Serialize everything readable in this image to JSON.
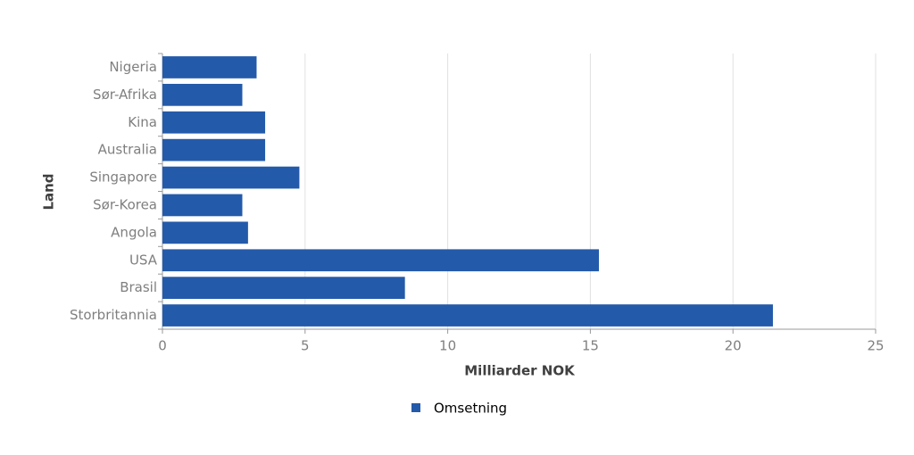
{
  "chart_data": {
    "type": "bar",
    "orientation": "horizontal",
    "xlabel": "Milliarder NOK",
    "ylabel": "Land",
    "categories": [
      "Nigeria",
      "Sør-Afrika",
      "Kina",
      "Australia",
      "Singapore",
      "Sør-Korea",
      "Angola",
      "USA",
      "Brasil",
      "Storbritannia"
    ],
    "series": [
      {
        "name": "Omsetning",
        "color": "#245aaa",
        "values": [
          3.3,
          2.8,
          3.6,
          3.6,
          4.8,
          2.8,
          3.0,
          15.3,
          8.5,
          21.4
        ]
      }
    ],
    "xlim": [
      0,
      25
    ],
    "xticks": [
      0,
      5,
      10,
      15,
      20,
      25
    ],
    "grid": true,
    "legend": "bottom"
  }
}
